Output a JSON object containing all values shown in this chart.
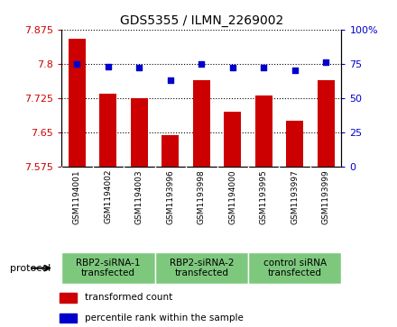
{
  "title": "GDS5355 / ILMN_2269002",
  "samples": [
    "GSM1194001",
    "GSM1194002",
    "GSM1194003",
    "GSM1193996",
    "GSM1193998",
    "GSM1194000",
    "GSM1193995",
    "GSM1193997",
    "GSM1193999"
  ],
  "bar_values": [
    7.855,
    7.735,
    7.725,
    7.645,
    7.765,
    7.695,
    7.73,
    7.675,
    7.765
  ],
  "dot_values": [
    75,
    73,
    72,
    63,
    75,
    72,
    72,
    70,
    76
  ],
  "ymin": 7.575,
  "ymax": 7.875,
  "y2min": 0,
  "y2max": 100,
  "yticks": [
    7.575,
    7.65,
    7.725,
    7.8,
    7.875
  ],
  "ytick_labels": [
    "7.575",
    "7.65",
    "7.725",
    "7.8",
    "7.875"
  ],
  "y2ticks": [
    0,
    25,
    50,
    75,
    100
  ],
  "y2tick_labels": [
    "0",
    "25",
    "50",
    "75",
    "100%"
  ],
  "bar_color": "#cc0000",
  "dot_color": "#0000cc",
  "sample_box_color": "#d8d8d8",
  "protocol_groups": [
    {
      "label": "RBP2-siRNA-1\ntransfected",
      "start": 0,
      "end": 3,
      "color": "#7ec87e"
    },
    {
      "label": "RBP2-siRNA-2\ntransfected",
      "start": 3,
      "end": 6,
      "color": "#7ec87e"
    },
    {
      "label": "control siRNA\ntransfected",
      "start": 6,
      "end": 9,
      "color": "#7ec87e"
    }
  ],
  "legend_bar_label": "transformed count",
  "legend_dot_label": "percentile rank within the sample",
  "protocol_label": "protocol",
  "tick_label_color_left": "#cc0000",
  "tick_label_color_right": "#0000cc",
  "title_fontsize": 10,
  "tick_fontsize": 8,
  "sample_fontsize": 6.5,
  "proto_fontsize": 7.5,
  "legend_fontsize": 7.5
}
